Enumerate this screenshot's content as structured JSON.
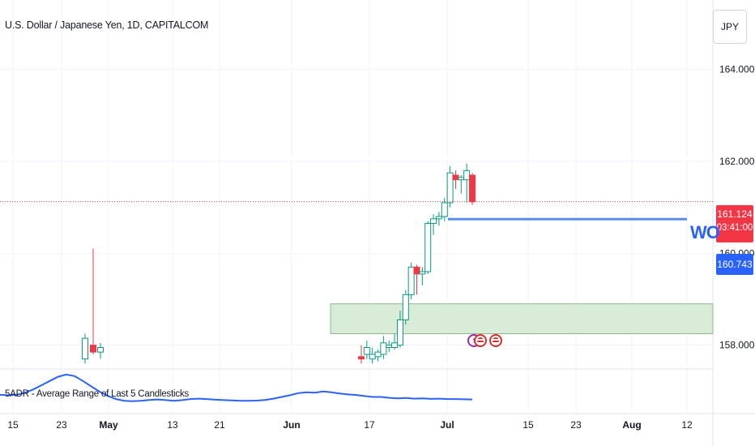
{
  "title": "U.S. Dollar / Japanese Yen, 1D, CAPITALCOM",
  "currency": "JPY",
  "indicator": {
    "label": "5ADR - Average Range of Last 5 Candlesticks",
    "values": [
      0.8,
      0.78,
      0.8,
      0.9,
      1.05,
      1.25,
      1.45,
      1.65,
      1.75,
      1.68,
      1.45,
      1.2,
      0.95,
      0.75,
      0.6,
      0.52,
      0.5,
      0.52,
      0.56,
      0.58,
      0.55,
      0.52,
      0.55,
      0.6,
      0.62,
      0.6,
      0.57,
      0.55,
      0.54,
      0.52,
      0.52,
      0.53,
      0.56,
      0.62,
      0.7,
      0.78,
      0.88,
      0.92,
      0.9,
      0.96,
      0.92,
      0.86,
      0.82,
      0.79,
      0.74,
      0.7,
      0.7,
      0.66,
      0.63,
      0.65,
      0.62,
      0.63,
      0.61,
      0.62,
      0.6,
      0.6,
      0.59,
      0.58
    ],
    "color": "#2962ff"
  },
  "price_tags": {
    "current_price": "161.124",
    "countdown": "03:41:00",
    "level_price": "160.743"
  },
  "annotation": {
    "text": "WO"
  },
  "colors": {
    "up": "#089981",
    "down": "#f23645",
    "level": "#5b8def",
    "zone_fill": "#d8ecd7",
    "zone_stroke": "#8fb98e"
  },
  "chart_data": {
    "type": "candlestick",
    "title": "U.S. Dollar / Japanese Yen, 1D, CAPITALCOM",
    "y_axis": {
      "ticks": [
        158,
        160,
        162,
        164
      ],
      "tick_labels": [
        "158.000",
        "160.000",
        "162.000",
        "164.000"
      ],
      "range": [
        157.5,
        165.3
      ],
      "position": "right"
    },
    "x_axis": {
      "tick_labels": [
        "15",
        "23",
        "May",
        "13",
        "21",
        "Jun",
        "17",
        "Jul",
        "15",
        "23",
        "Aug",
        "12"
      ],
      "bold_labels": [
        "May",
        "Jun",
        "Jul",
        "Aug"
      ]
    },
    "candles": [
      {
        "o": 157.7,
        "h": 158.25,
        "l": 157.6,
        "c": 158.15
      },
      {
        "o": 158.0,
        "h": 160.1,
        "l": 157.8,
        "c": 157.85
      },
      {
        "o": 157.85,
        "h": 158.05,
        "l": 157.7,
        "c": 157.95
      },
      {
        "o": 157.75,
        "h": 158.0,
        "l": 157.6,
        "c": 157.7
      },
      {
        "o": 157.8,
        "h": 158.1,
        "l": 157.7,
        "c": 157.95
      },
      {
        "o": 157.7,
        "h": 157.95,
        "l": 157.6,
        "c": 157.8
      },
      {
        "o": 157.75,
        "h": 157.9,
        "l": 157.65,
        "c": 157.85
      },
      {
        "o": 157.8,
        "h": 158.2,
        "l": 157.7,
        "c": 158.05
      },
      {
        "o": 157.95,
        "h": 158.1,
        "l": 157.85,
        "c": 158.0
      },
      {
        "o": 157.95,
        "h": 158.25,
        "l": 157.9,
        "c": 158.05
      },
      {
        "o": 158.0,
        "h": 158.75,
        "l": 157.95,
        "c": 158.55
      },
      {
        "o": 158.55,
        "h": 159.2,
        "l": 158.45,
        "c": 159.1
      },
      {
        "o": 159.1,
        "h": 159.8,
        "l": 159.0,
        "c": 159.7
      },
      {
        "o": 159.7,
        "h": 159.75,
        "l": 159.1,
        "c": 159.55
      },
      {
        "o": 159.55,
        "h": 159.7,
        "l": 159.3,
        "c": 159.6
      },
      {
        "o": 159.6,
        "h": 160.7,
        "l": 159.55,
        "c": 160.65
      },
      {
        "o": 160.65,
        "h": 160.85,
        "l": 160.4,
        "c": 160.75
      },
      {
        "o": 160.75,
        "h": 160.9,
        "l": 160.6,
        "c": 160.8
      },
      {
        "o": 160.8,
        "h": 161.2,
        "l": 160.7,
        "c": 161.1
      },
      {
        "o": 161.1,
        "h": 161.9,
        "l": 161.0,
        "c": 161.75
      },
      {
        "o": 161.7,
        "h": 161.8,
        "l": 161.4,
        "c": 161.6
      },
      {
        "o": 161.6,
        "h": 161.7,
        "l": 161.3,
        "c": 161.65
      },
      {
        "o": 161.6,
        "h": 161.95,
        "l": 161.1,
        "c": 161.8
      },
      {
        "o": 161.7,
        "h": 161.75,
        "l": 161.05,
        "c": 161.12
      }
    ],
    "current_price": 161.124,
    "horizontal_level": 160.743,
    "zone": {
      "low": 158.25,
      "high": 158.9
    },
    "indicator_series": "5ADR - Average Range of Last 5 Candlesticks"
  }
}
